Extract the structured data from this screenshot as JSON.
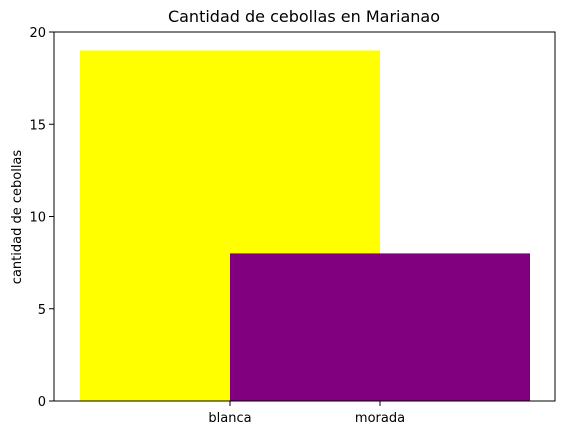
{
  "chart_data": {
    "type": "bar",
    "title": "Cantidad de cebollas en Marianao",
    "xlabel": "",
    "ylabel": "cantidad de cebollas",
    "categories": [
      "blanca",
      "morada"
    ],
    "values": [
      19,
      8
    ],
    "colors": [
      "#ffff00",
      "#800080"
    ],
    "ylim": [
      0,
      20
    ],
    "yticks": [
      0,
      5,
      10,
      15,
      20
    ],
    "grid": false,
    "legend": "none"
  }
}
